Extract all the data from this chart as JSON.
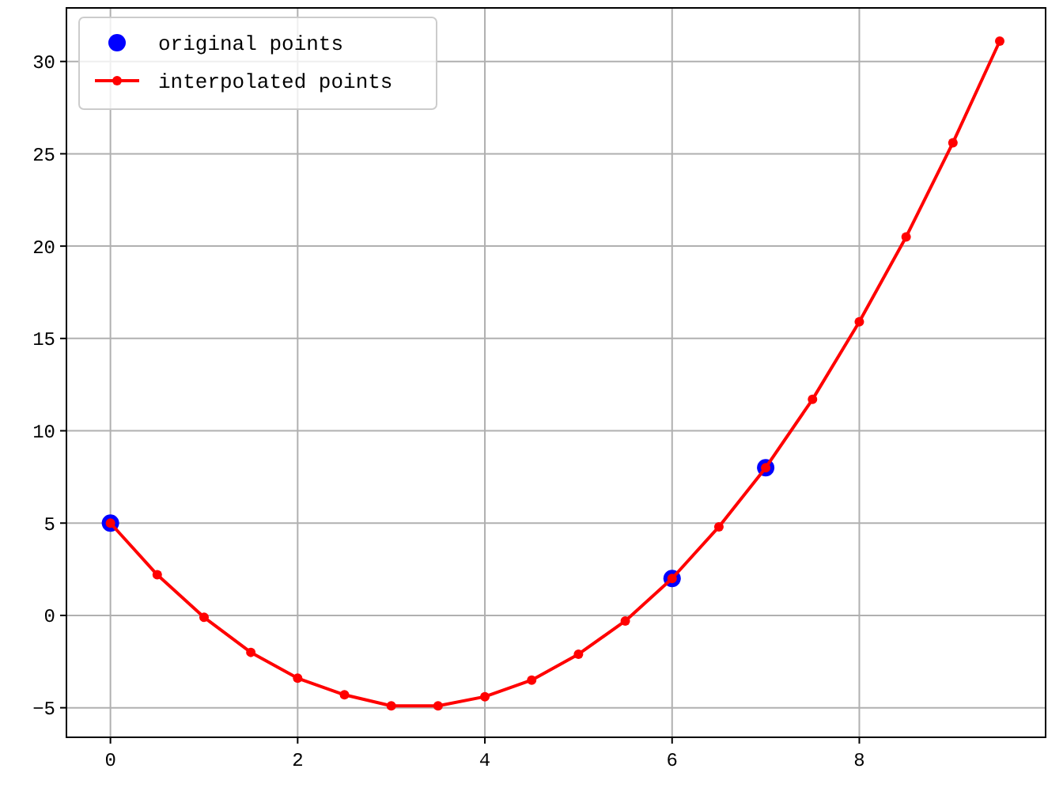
{
  "chart_data": {
    "type": "line",
    "xlim": [
      -0.47,
      9.99
    ],
    "ylim": [
      -6.6,
      32.9
    ],
    "xticks": [
      0,
      2,
      4,
      6,
      8
    ],
    "yticks": [
      {
        "value": -5,
        "label": "−5"
      },
      0,
      5,
      10,
      15,
      20,
      25,
      30
    ],
    "grid": true,
    "legend": "top left",
    "series": [
      {
        "name": "original points",
        "type": "scatter",
        "color": "#0000ff",
        "marker": "circle",
        "x": [
          0,
          6,
          7
        ],
        "values": [
          5,
          2,
          8
        ]
      },
      {
        "name": "interpolated points",
        "color": "#ff0000",
        "marker": "circle",
        "line_style": "solid",
        "x": [
          0,
          0.5,
          1,
          1.5,
          2,
          2.5,
          3,
          3.5,
          4,
          4.5,
          5,
          5.5,
          6,
          6.5,
          7,
          7.5,
          8,
          8.5,
          9,
          9.5
        ],
        "values": [
          5,
          2.2,
          -0.1,
          -2.0,
          -3.4,
          -4.3,
          -4.9,
          -4.9,
          -4.4,
          -3.5,
          -2.1,
          -0.3,
          2.0,
          4.8,
          8.0,
          11.7,
          15.9,
          20.5,
          25.6,
          31.1
        ]
      }
    ]
  }
}
